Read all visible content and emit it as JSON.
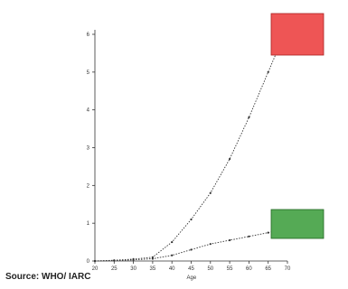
{
  "source": "Source: WHO/ IARC",
  "chart_data": {
    "type": "line",
    "xlabel": "Age",
    "ylabel": "",
    "xlim": [
      20,
      70
    ],
    "ylim": [
      0,
      6
    ],
    "x_ticks": [
      20,
      25,
      30,
      35,
      40,
      45,
      50,
      55,
      60,
      65,
      70
    ],
    "y_ticks": [
      0,
      1,
      2,
      3,
      4,
      5,
      6
    ],
    "series": [
      {
        "name": "",
        "color": "#333333",
        "x": [
          20,
          25,
          30,
          35,
          40,
          45,
          50,
          55,
          60,
          65,
          70
        ],
        "values": [
          0,
          0.02,
          0.05,
          0.1,
          0.5,
          1.1,
          1.8,
          2.7,
          3.8,
          5.0,
          6.2
        ]
      },
      {
        "name": "",
        "color": "#333333",
        "x": [
          20,
          25,
          30,
          35,
          40,
          45,
          50,
          55,
          60,
          65,
          70
        ],
        "values": [
          0,
          0.01,
          0.03,
          0.06,
          0.15,
          0.3,
          0.45,
          0.55,
          0.65,
          0.75,
          0.85
        ]
      }
    ],
    "annotations": [
      {
        "series": 0,
        "color": "#ee5555",
        "border": "#aa2222",
        "text": ""
      },
      {
        "series": 1,
        "color": "#55aa55",
        "border": "#226622",
        "text": ""
      }
    ]
  }
}
